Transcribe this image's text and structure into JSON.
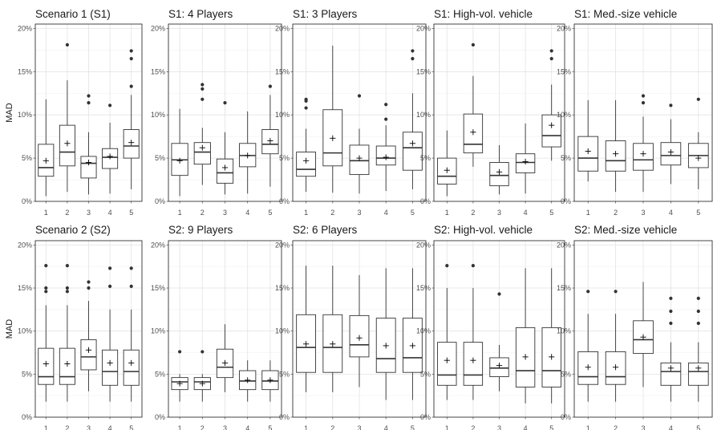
{
  "chart_data": {
    "type": "boxplot",
    "ylabel": "MAD",
    "y_tick_labels": [
      "0%",
      "5%",
      "10%",
      "15%",
      "20%"
    ],
    "y_ticks": [
      0,
      5,
      10,
      15,
      20
    ],
    "ylim": [
      0,
      20.5
    ],
    "categories": [
      "1",
      "2",
      "3",
      "4",
      "5"
    ],
    "panels": [
      {
        "title": "Scenario 1 (S1)",
        "boxes": [
          {
            "min": 0.6,
            "q1": 2.9,
            "median": 3.9,
            "q3": 6.6,
            "max": 11.8,
            "mean": 4.7,
            "outliers": []
          },
          {
            "min": 1.1,
            "q1": 4.1,
            "median": 5.7,
            "q3": 8.8,
            "max": 14.0,
            "mean": 6.7,
            "outliers": [
              18.1
            ]
          },
          {
            "min": 0.8,
            "q1": 2.7,
            "median": 4.4,
            "q3": 5.2,
            "max": 8.0,
            "mean": 4.5,
            "outliers": [
              11.4,
              12.2
            ]
          },
          {
            "min": 0.9,
            "q1": 3.8,
            "median": 5.1,
            "q3": 6.1,
            "max": 9.1,
            "mean": 5.2,
            "outliers": [
              11.1
            ]
          },
          {
            "min": 1.4,
            "q1": 5.0,
            "median": 6.4,
            "q3": 8.3,
            "max": 12.3,
            "mean": 6.8,
            "outliers": [
              13.3,
              16.5,
              17.4
            ]
          }
        ]
      },
      {
        "title": "S1: 4 Players",
        "boxes": [
          {
            "min": 0.6,
            "q1": 3.0,
            "median": 4.8,
            "q3": 6.7,
            "max": 10.7,
            "mean": 4.7,
            "outliers": []
          },
          {
            "min": 1.9,
            "q1": 4.3,
            "median": 5.7,
            "q3": 6.8,
            "max": 8.5,
            "mean": 6.2,
            "outliers": [
              11.8,
              13.0,
              13.5
            ]
          },
          {
            "min": 0.8,
            "q1": 2.1,
            "median": 3.3,
            "q3": 4.9,
            "max": 8.0,
            "mean": 3.9,
            "outliers": [
              11.4
            ]
          },
          {
            "min": 0.9,
            "q1": 4.0,
            "median": 5.3,
            "q3": 6.7,
            "max": 10.4,
            "mean": 5.3,
            "outliers": []
          },
          {
            "min": 1.7,
            "q1": 5.5,
            "median": 6.6,
            "q3": 8.3,
            "max": 12.3,
            "mean": 7.0,
            "outliers": [
              13.3
            ]
          }
        ]
      },
      {
        "title": "S1: 3 Players",
        "boxes": [
          {
            "min": 1.1,
            "q1": 2.9,
            "median": 3.7,
            "q3": 5.7,
            "max": 8.4,
            "mean": 4.7,
            "outliers": [
              10.8,
              11.6,
              11.8
            ]
          },
          {
            "min": 1.0,
            "q1": 4.1,
            "median": 5.6,
            "q3": 10.6,
            "max": 18.0,
            "mean": 7.3,
            "outliers": []
          },
          {
            "min": 0.9,
            "q1": 3.1,
            "median": 4.7,
            "q3": 6.5,
            "max": 8.4,
            "mean": 5.0,
            "outliers": [
              12.2
            ]
          },
          {
            "min": 1.2,
            "q1": 4.2,
            "median": 5.0,
            "q3": 6.4,
            "max": 8.8,
            "mean": 5.1,
            "outliers": [
              9.5,
              11.2
            ]
          },
          {
            "min": 1.4,
            "q1": 3.6,
            "median": 6.2,
            "q3": 8.0,
            "max": 12.5,
            "mean": 6.7,
            "outliers": [
              16.5,
              17.4
            ]
          }
        ]
      },
      {
        "title": "S1: High-vol. vehicle",
        "boxes": [
          {
            "min": 0.6,
            "q1": 2.0,
            "median": 2.9,
            "q3": 5.0,
            "max": 8.2,
            "mean": 3.6,
            "outliers": []
          },
          {
            "min": 4.0,
            "q1": 5.6,
            "median": 6.6,
            "q3": 10.1,
            "max": 14.5,
            "mean": 8.0,
            "outliers": [
              18.1
            ]
          },
          {
            "min": 0.8,
            "q1": 1.8,
            "median": 3.0,
            "q3": 4.5,
            "max": 6.5,
            "mean": 3.4,
            "outliers": []
          },
          {
            "min": 0.9,
            "q1": 3.3,
            "median": 4.5,
            "q3": 5.5,
            "max": 9.0,
            "mean": 4.6,
            "outliers": []
          },
          {
            "min": 4.7,
            "q1": 6.3,
            "median": 7.6,
            "q3": 10.0,
            "max": 13.5,
            "mean": 8.8,
            "outliers": [
              16.5,
              17.4
            ]
          }
        ]
      },
      {
        "title": "S1: Med.-size vehicle",
        "boxes": [
          {
            "min": 2.3,
            "q1": 3.5,
            "median": 5.0,
            "q3": 7.5,
            "max": 11.7,
            "mean": 5.8,
            "outliers": []
          },
          {
            "min": 1.1,
            "q1": 3.5,
            "median": 4.7,
            "q3": 7.0,
            "max": 11.7,
            "mean": 5.5,
            "outliers": []
          },
          {
            "min": 1.1,
            "q1": 3.6,
            "median": 4.8,
            "q3": 6.7,
            "max": 9.8,
            "mean": 5.5,
            "outliers": [
              11.4,
              12.2
            ]
          },
          {
            "min": 2.0,
            "q1": 4.2,
            "median": 5.3,
            "q3": 6.8,
            "max": 9.5,
            "mean": 5.7,
            "outliers": [
              11.1
            ]
          },
          {
            "min": 1.4,
            "q1": 3.9,
            "median": 5.3,
            "q3": 6.7,
            "max": 8.0,
            "mean": 5.0,
            "outliers": [
              11.8
            ]
          }
        ]
      },
      {
        "title": "Scenario 2 (S2)",
        "boxes": [
          {
            "min": 1.8,
            "q1": 3.8,
            "median": 4.7,
            "q3": 8.0,
            "max": 13.0,
            "mean": 6.2,
            "outliers": [
              14.6,
              15.0,
              17.6
            ]
          },
          {
            "min": 1.8,
            "q1": 3.8,
            "median": 4.7,
            "q3": 8.0,
            "max": 13.0,
            "mean": 6.2,
            "outliers": [
              14.6,
              15.0,
              17.6
            ]
          },
          {
            "min": 3.0,
            "q1": 5.5,
            "median": 7.0,
            "q3": 9.0,
            "max": 13.5,
            "mean": 7.8,
            "outliers": [
              15.0,
              15.7
            ]
          },
          {
            "min": 1.8,
            "q1": 3.7,
            "median": 5.3,
            "q3": 7.8,
            "max": 12.5,
            "mean": 6.3,
            "outliers": [
              15.2,
              17.3
            ]
          },
          {
            "min": 1.8,
            "q1": 3.7,
            "median": 5.3,
            "q3": 7.8,
            "max": 12.5,
            "mean": 6.3,
            "outliers": [
              15.2,
              17.3
            ]
          }
        ]
      },
      {
        "title": "S2: 9 Players",
        "boxes": [
          {
            "min": 1.8,
            "q1": 3.2,
            "median": 4.1,
            "q3": 4.6,
            "max": 5.0,
            "mean": 3.9,
            "outliers": [
              7.6
            ]
          },
          {
            "min": 1.8,
            "q1": 3.2,
            "median": 4.1,
            "q3": 4.6,
            "max": 5.0,
            "mean": 3.9,
            "outliers": [
              7.6
            ]
          },
          {
            "min": 2.9,
            "q1": 4.6,
            "median": 5.8,
            "q3": 7.9,
            "max": 10.8,
            "mean": 6.3,
            "outliers": []
          },
          {
            "min": 1.8,
            "q1": 3.2,
            "median": 4.2,
            "q3": 5.4,
            "max": 6.6,
            "mean": 4.3,
            "outliers": []
          },
          {
            "min": 1.8,
            "q1": 3.2,
            "median": 4.2,
            "q3": 5.4,
            "max": 6.6,
            "mean": 4.3,
            "outliers": []
          }
        ]
      },
      {
        "title": "S2: 6 Players",
        "boxes": [
          {
            "min": 2.9,
            "q1": 5.2,
            "median": 8.1,
            "q3": 11.9,
            "max": 17.6,
            "mean": 8.5,
            "outliers": []
          },
          {
            "min": 2.9,
            "q1": 5.2,
            "median": 8.1,
            "q3": 11.9,
            "max": 17.6,
            "mean": 8.5,
            "outliers": []
          },
          {
            "min": 3.5,
            "q1": 7.0,
            "median": 8.4,
            "q3": 11.8,
            "max": 16.5,
            "mean": 9.2,
            "outliers": []
          },
          {
            "min": 2.0,
            "q1": 5.2,
            "median": 6.8,
            "q3": 11.5,
            "max": 17.3,
            "mean": 8.3,
            "outliers": []
          },
          {
            "min": 2.0,
            "q1": 5.2,
            "median": 6.9,
            "q3": 11.5,
            "max": 17.3,
            "mean": 8.3,
            "outliers": []
          }
        ]
      },
      {
        "title": "S2: High-vol. vehicle",
        "boxes": [
          {
            "min": 2.0,
            "q1": 3.7,
            "median": 4.9,
            "q3": 8.7,
            "max": 15.0,
            "mean": 6.6,
            "outliers": [
              17.6
            ]
          },
          {
            "min": 2.0,
            "q1": 3.7,
            "median": 4.9,
            "q3": 8.7,
            "max": 15.0,
            "mean": 6.6,
            "outliers": [
              17.6
            ]
          },
          {
            "min": 3.0,
            "q1": 4.7,
            "median": 5.7,
            "q3": 6.9,
            "max": 8.4,
            "mean": 6.0,
            "outliers": [
              14.3
            ]
          },
          {
            "min": 1.6,
            "q1": 3.5,
            "median": 5.4,
            "q3": 10.4,
            "max": 17.3,
            "mean": 7.0,
            "outliers": []
          },
          {
            "min": 1.6,
            "q1": 3.5,
            "median": 5.4,
            "q3": 10.4,
            "max": 17.3,
            "mean": 7.0,
            "outliers": []
          }
        ]
      },
      {
        "title": "S2: Med.-size vehicle",
        "boxes": [
          {
            "min": 1.8,
            "q1": 3.8,
            "median": 4.7,
            "q3": 7.6,
            "max": 12.0,
            "mean": 5.8,
            "outliers": [
              14.6
            ]
          },
          {
            "min": 1.8,
            "q1": 3.8,
            "median": 4.7,
            "q3": 7.6,
            "max": 12.0,
            "mean": 5.8,
            "outliers": [
              14.6
            ]
          },
          {
            "min": 3.5,
            "q1": 7.4,
            "median": 9.0,
            "q3": 11.2,
            "max": 15.7,
            "mean": 9.3,
            "outliers": []
          },
          {
            "min": 1.8,
            "q1": 3.7,
            "median": 5.3,
            "q3": 6.3,
            "max": 8.7,
            "mean": 5.7,
            "outliers": [
              10.9,
              12.3,
              13.8
            ]
          },
          {
            "min": 1.8,
            "q1": 3.7,
            "median": 5.3,
            "q3": 6.3,
            "max": 8.7,
            "mean": 5.7,
            "outliers": [
              10.9,
              12.3,
              13.8
            ]
          }
        ]
      }
    ]
  }
}
